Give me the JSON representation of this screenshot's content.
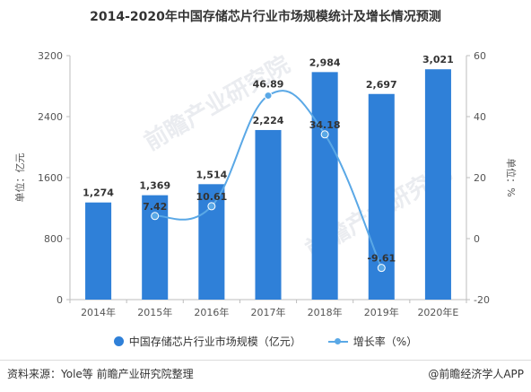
{
  "title": "2014-2020年中国存储芯片行业市场规模统计及增长情况预测",
  "chart_data": {
    "type": "bar",
    "categories": [
      "2014年",
      "2015年",
      "2016年",
      "2017年",
      "2018年",
      "2019年",
      "2020年E"
    ],
    "series": [
      {
        "name": "中国存储芯片行业市场规模（亿元）",
        "type": "bar",
        "axis": "left",
        "values": [
          1274,
          1369,
          1514,
          2224,
          2984,
          2697,
          3021
        ],
        "labels": [
          "1,274",
          "1,369",
          "1,514",
          "2,224",
          "2,984",
          "2,697",
          "3,021"
        ],
        "color": "#2f80d8"
      },
      {
        "name": "增长率（%）",
        "type": "line",
        "axis": "right",
        "values": [
          null,
          7.42,
          10.61,
          46.89,
          34.18,
          -9.61,
          null
        ],
        "labels": [
          "",
          "7.42",
          "10.61",
          "46.89",
          "34.18",
          "-9.61",
          ""
        ],
        "color": "#5aa8e6"
      }
    ],
    "y_left": {
      "label": "单位：亿元",
      "ylim": [
        0,
        3200
      ],
      "ticks": [
        "0",
        "800",
        "1600",
        "2400",
        "3200"
      ]
    },
    "y_right": {
      "label": "单位：%",
      "ylim": [
        -20,
        60
      ],
      "ticks": [
        "-20",
        "0",
        "20",
        "40",
        "60"
      ]
    },
    "legend_position": "bottom",
    "grid": false
  },
  "legend": {
    "bar_label": "中国存储芯片行业市场规模（亿元）",
    "line_label": "增长率（%）"
  },
  "footer": {
    "source": "资料来源：Yole等 前瞻产业研究院整理",
    "brand": "@前瞻经济学人APP"
  }
}
